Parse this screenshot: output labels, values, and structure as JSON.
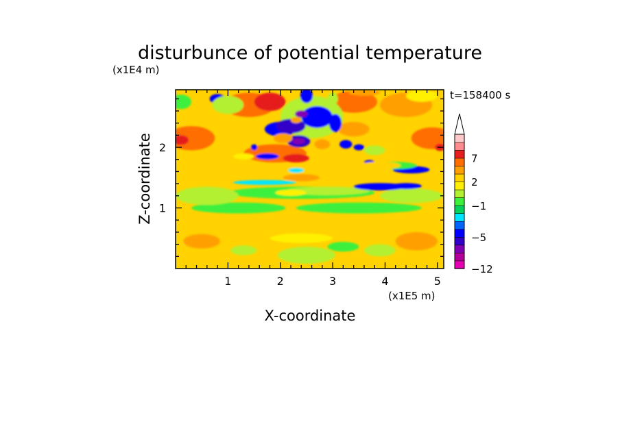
{
  "chart_data": {
    "type": "heatmap",
    "title": "disturbunce of potential temperature",
    "xlabel": "X-coordinate",
    "ylabel": "Z-coordinate",
    "x_unit": "(x1E5 m)",
    "y_unit": "(x1E4 m)",
    "time_label": "t=158400 s",
    "xlim": [
      0,
      5.12
    ],
    "ylim": [
      0,
      2.95
    ],
    "x_ticks": [
      {
        "value": 1,
        "label": "1"
      },
      {
        "value": 2,
        "label": "2"
      },
      {
        "value": 3,
        "label": "3"
      },
      {
        "value": 4,
        "label": "4"
      },
      {
        "value": 5,
        "label": "5"
      }
    ],
    "y_ticks": [
      {
        "value": 1,
        "label": "1"
      },
      {
        "value": 2,
        "label": "2"
      }
    ],
    "colorbar": {
      "labels": [
        {
          "value": 7,
          "label": "7"
        },
        {
          "value": 2,
          "label": "2"
        },
        {
          "value": -1,
          "label": "−1"
        },
        {
          "value": -5,
          "label": "−5"
        },
        {
          "value": -12,
          "label": "−12"
        }
      ],
      "levels": [
        -12,
        -10,
        -8,
        -6,
        -5,
        -4,
        -3,
        -2,
        -1,
        0,
        1,
        2,
        3,
        5,
        7,
        9,
        11
      ],
      "colors": [
        "#e600b4",
        "#b40096",
        "#8200b4",
        "#3200c8",
        "#0000ff",
        "#0064ff",
        "#00e6ff",
        "#00d25a",
        "#3cf03c",
        "#b4f032",
        "#fff000",
        "#ffd200",
        "#ffa000",
        "#ff6e00",
        "#e61e1e",
        "#ff8c8c",
        "#ffc8c8"
      ],
      "extend_max": true
    },
    "colors": {
      "near_zero_cool": "#3cf03c",
      "weak_positive": "#fff000",
      "moderate_positive": "#ffa000",
      "strong_positive": "#e61e1e",
      "weak_negative": "#00e6ff",
      "strong_negative": "#0000ff",
      "extreme_negative": "#8200b4"
    }
  }
}
